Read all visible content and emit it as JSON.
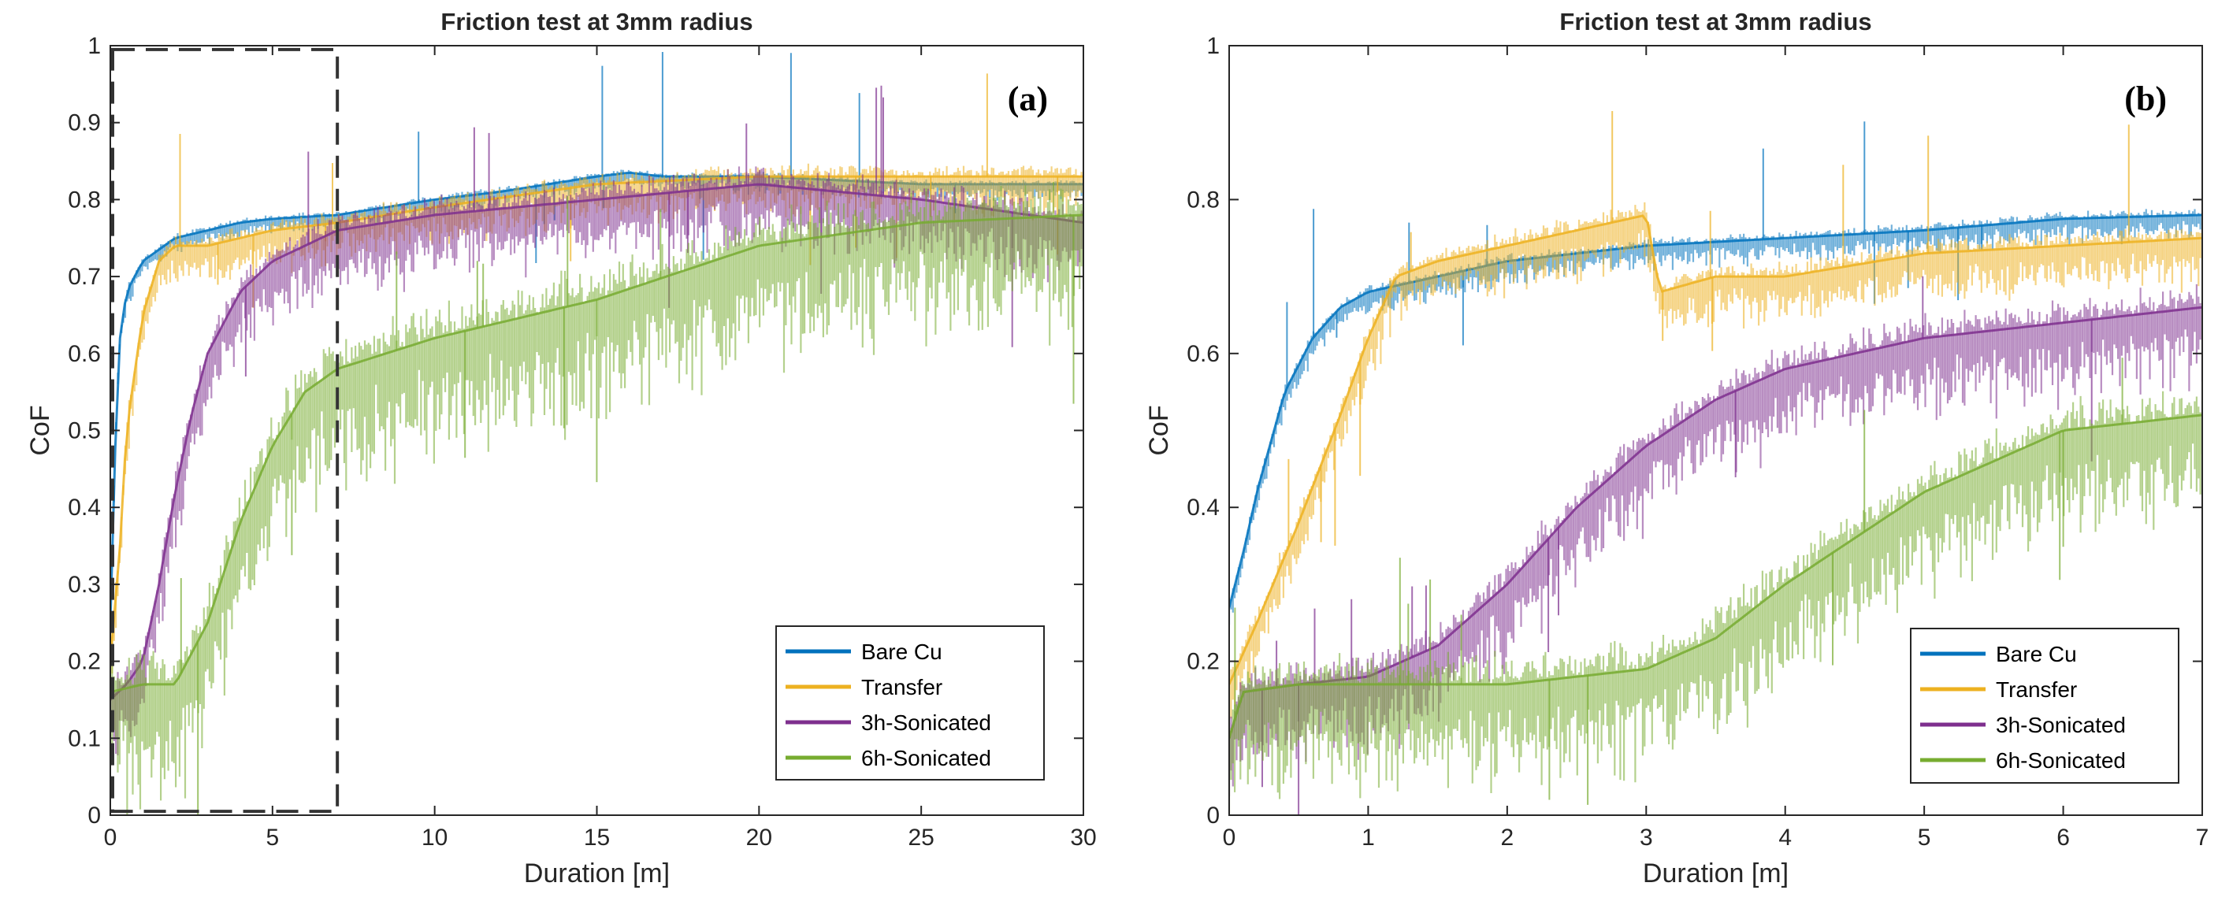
{
  "chart_data": [
    {
      "type": "line",
      "panel": "(a)",
      "title": "Friction test at 3mm radius",
      "xlabel": "Duration [m]",
      "ylabel": "CoF",
      "xlim": [
        0,
        30
      ],
      "ylim": [
        0,
        1
      ],
      "xticks": [
        0,
        5,
        10,
        15,
        20,
        25,
        30
      ],
      "yticks": [
        0,
        0.1,
        0.2,
        0.3,
        0.4,
        0.5,
        0.6,
        0.7,
        0.8,
        0.9,
        1
      ],
      "ytick_labels": [
        "0",
        "0.1",
        "0.2",
        "0.3",
        "0.4",
        "0.5",
        "0.6",
        "0.7",
        "0.8",
        "0.9",
        "1"
      ],
      "grid": false,
      "legend_location": "bottom-right",
      "annotation": "dashed box marking 0–7 m (zoomed in panel b)",
      "zoom_box_x": [
        0,
        7
      ],
      "series": [
        {
          "name": "Bare Cu",
          "color": "#0072BD",
          "spread": 0.02,
          "x": [
            0,
            0.1,
            0.2,
            0.3,
            0.5,
            1,
            2,
            3,
            4,
            5,
            7,
            10,
            12,
            15,
            16,
            17,
            20,
            25,
            30
          ],
          "y": [
            0.25,
            0.4,
            0.55,
            0.62,
            0.68,
            0.72,
            0.75,
            0.76,
            0.77,
            0.775,
            0.78,
            0.8,
            0.81,
            0.83,
            0.835,
            0.83,
            0.83,
            0.82,
            0.82
          ]
        },
        {
          "name": "Transfer",
          "color": "#EDB120",
          "spread": 0.05,
          "x": [
            0,
            0.3,
            0.5,
            1,
            1.5,
            2,
            3,
            5,
            7,
            10,
            15,
            20,
            25,
            30
          ],
          "y": [
            0.2,
            0.35,
            0.5,
            0.65,
            0.72,
            0.74,
            0.74,
            0.76,
            0.77,
            0.79,
            0.82,
            0.83,
            0.83,
            0.83
          ]
        },
        {
          "name": "3h-Sonicated",
          "color": "#7E2F8E",
          "spread": 0.08,
          "x": [
            0,
            0.5,
            1,
            1.5,
            2,
            2.5,
            3,
            4,
            5,
            7,
            10,
            15,
            20,
            25,
            30
          ],
          "y": [
            0.15,
            0.17,
            0.2,
            0.3,
            0.42,
            0.52,
            0.6,
            0.68,
            0.72,
            0.76,
            0.78,
            0.8,
            0.82,
            0.8,
            0.77
          ]
        },
        {
          "name": "6h-Sonicated",
          "color": "#77AC30",
          "spread": 0.15,
          "x": [
            0,
            1,
            2,
            3,
            4,
            5,
            6,
            7,
            10,
            15,
            20,
            25,
            30
          ],
          "y": [
            0.16,
            0.17,
            0.17,
            0.25,
            0.38,
            0.48,
            0.55,
            0.58,
            0.62,
            0.67,
            0.74,
            0.77,
            0.78
          ]
        }
      ]
    },
    {
      "type": "line",
      "panel": "(b)",
      "title": "Friction test at 3mm radius",
      "xlabel": "Duration [m]",
      "ylabel": "CoF",
      "xlim": [
        0,
        7
      ],
      "ylim": [
        0,
        1
      ],
      "xticks": [
        0,
        1,
        2,
        3,
        4,
        5,
        6,
        7
      ],
      "yticks": [
        0,
        0.2,
        0.4,
        0.6,
        0.8,
        1
      ],
      "ytick_labels": [
        "0",
        "0.2",
        "0.4",
        "0.6",
        "0.8",
        "1"
      ],
      "grid": false,
      "legend_location": "bottom-right",
      "series": [
        {
          "name": "Bare Cu",
          "color": "#0072BD",
          "spread": 0.03,
          "x": [
            0,
            0.1,
            0.2,
            0.4,
            0.6,
            0.8,
            1,
            1.5,
            2,
            3,
            4,
            5,
            6,
            7
          ],
          "y": [
            0.27,
            0.34,
            0.42,
            0.55,
            0.62,
            0.66,
            0.68,
            0.7,
            0.72,
            0.74,
            0.75,
            0.76,
            0.775,
            0.78
          ]
        },
        {
          "name": "Transfer",
          "color": "#EDB120",
          "spread": 0.06,
          "x": [
            0,
            0.2,
            0.5,
            0.8,
            1,
            1.2,
            1.5,
            2,
            2.5,
            3,
            3.1,
            3.5,
            4,
            5,
            6,
            7
          ],
          "y": [
            0.17,
            0.25,
            0.38,
            0.52,
            0.62,
            0.7,
            0.72,
            0.74,
            0.76,
            0.78,
            0.68,
            0.7,
            0.7,
            0.73,
            0.74,
            0.75
          ]
        },
        {
          "name": "3h-Sonicated",
          "color": "#7E2F8E",
          "spread": 0.1,
          "x": [
            0,
            0.1,
            0.5,
            1,
            1.5,
            2,
            2.5,
            3,
            3.5,
            4,
            4.5,
            5,
            5.5,
            6,
            7
          ],
          "y": [
            0.1,
            0.16,
            0.17,
            0.18,
            0.22,
            0.3,
            0.4,
            0.48,
            0.54,
            0.58,
            0.6,
            0.62,
            0.63,
            0.64,
            0.66
          ]
        },
        {
          "name": "6h-Sonicated",
          "color": "#77AC30",
          "spread": 0.13,
          "x": [
            0,
            0.1,
            0.5,
            1,
            2,
            3,
            3.5,
            4,
            4.5,
            5,
            5.5,
            6,
            7
          ],
          "y": [
            0.1,
            0.16,
            0.17,
            0.17,
            0.17,
            0.19,
            0.23,
            0.3,
            0.36,
            0.42,
            0.46,
            0.5,
            0.52
          ]
        }
      ]
    }
  ]
}
